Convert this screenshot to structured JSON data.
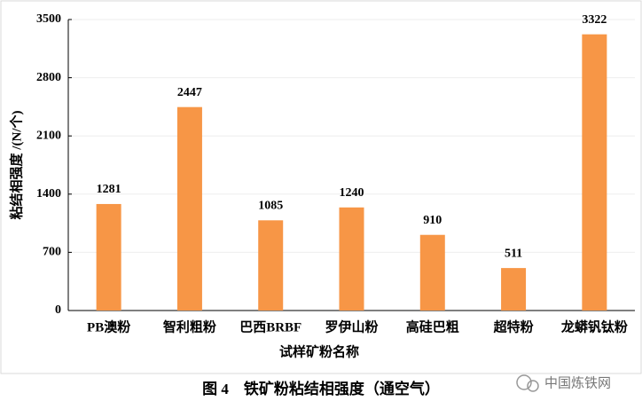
{
  "chart_data": {
    "type": "bar",
    "y_label": "粘结相强度 /(N/个)",
    "x_label": "试样矿粉名称",
    "caption": "图 4　铁矿粉粘结相强度（通空气）",
    "categories": [
      "PB澳粉",
      "智利粗粉",
      "巴西BRBF",
      "罗伊山粉",
      "高硅巴粗",
      "超特粉",
      "龙蟒钒钛粉"
    ],
    "values": [
      1281,
      2447,
      1085,
      1240,
      910,
      511,
      3322
    ],
    "color": "#f79646",
    "ylim": [
      0,
      3500
    ],
    "yticks": [
      0,
      700,
      1400,
      2100,
      2800,
      3500
    ],
    "grid": true
  },
  "watermark": "中国炼铁网"
}
